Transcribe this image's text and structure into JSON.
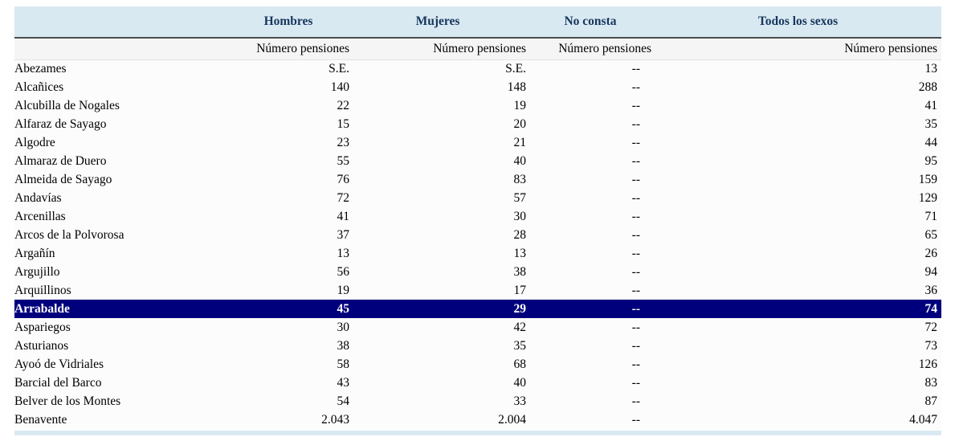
{
  "colors": {
    "header_bg": "#d9e9f2",
    "header_text": "#17365d",
    "highlight_bg": "#00007d",
    "highlight_text": "#ffffff"
  },
  "table": {
    "col_groups": [
      {
        "label": "Hombres"
      },
      {
        "label": "Mujeres"
      },
      {
        "label": "No consta"
      },
      {
        "label": "Todos los sexos"
      }
    ],
    "subheaders": [
      "Número pensiones",
      "Número pensiones",
      "Número pensiones",
      "Número pensiones"
    ],
    "rows": [
      {
        "name": "Abezames",
        "values": [
          "S.E.",
          "S.E.",
          "--",
          "13"
        ],
        "highlighted": false
      },
      {
        "name": "Alcañices",
        "values": [
          "140",
          "148",
          "--",
          "288"
        ],
        "highlighted": false
      },
      {
        "name": "Alcubilla de Nogales",
        "values": [
          "22",
          "19",
          "--",
          "41"
        ],
        "highlighted": false
      },
      {
        "name": "Alfaraz de Sayago",
        "values": [
          "15",
          "20",
          "--",
          "35"
        ],
        "highlighted": false
      },
      {
        "name": "Algodre",
        "values": [
          "23",
          "21",
          "--",
          "44"
        ],
        "highlighted": false
      },
      {
        "name": "Almaraz de Duero",
        "values": [
          "55",
          "40",
          "--",
          "95"
        ],
        "highlighted": false
      },
      {
        "name": "Almeida de Sayago",
        "values": [
          "76",
          "83",
          "--",
          "159"
        ],
        "highlighted": false
      },
      {
        "name": "Andavías",
        "values": [
          "72",
          "57",
          "--",
          "129"
        ],
        "highlighted": false
      },
      {
        "name": "Arcenillas",
        "values": [
          "41",
          "30",
          "--",
          "71"
        ],
        "highlighted": false
      },
      {
        "name": "Arcos de la Polvorosa",
        "values": [
          "37",
          "28",
          "--",
          "65"
        ],
        "highlighted": false
      },
      {
        "name": "Argañín",
        "values": [
          "13",
          "13",
          "--",
          "26"
        ],
        "highlighted": false
      },
      {
        "name": "Argujillo",
        "values": [
          "56",
          "38",
          "--",
          "94"
        ],
        "highlighted": false
      },
      {
        "name": "Arquillinos",
        "values": [
          "19",
          "17",
          "--",
          "36"
        ],
        "highlighted": false
      },
      {
        "name": "Arrabalde",
        "values": [
          "45",
          "29",
          "--",
          "74"
        ],
        "highlighted": true
      },
      {
        "name": "Aspariegos",
        "values": [
          "30",
          "42",
          "--",
          "72"
        ],
        "highlighted": false
      },
      {
        "name": "Asturianos",
        "values": [
          "38",
          "35",
          "--",
          "73"
        ],
        "highlighted": false
      },
      {
        "name": "Ayoó de Vidriales",
        "values": [
          "58",
          "68",
          "--",
          "126"
        ],
        "highlighted": false
      },
      {
        "name": "Barcial del Barco",
        "values": [
          "43",
          "40",
          "--",
          "83"
        ],
        "highlighted": false
      },
      {
        "name": "Belver de los Montes",
        "values": [
          "54",
          "33",
          "--",
          "87"
        ],
        "highlighted": false
      },
      {
        "name": "Benavente",
        "values": [
          "2.043",
          "2.004",
          "--",
          "4.047"
        ],
        "highlighted": false
      }
    ]
  }
}
